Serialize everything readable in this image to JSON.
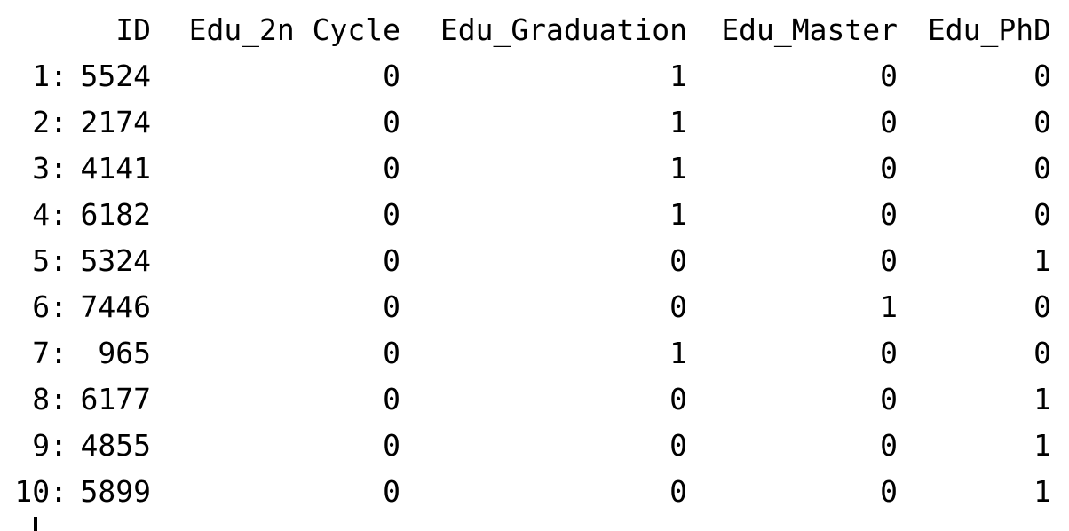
{
  "table": {
    "headers": [
      "",
      "ID",
      "Edu_2n Cycle",
      "Edu_Graduation",
      "Edu_Master",
      "Edu_PhD"
    ],
    "rows": [
      {
        "row": "1:",
        "ID": "5524",
        "Edu_2n Cycle": "0",
        "Edu_Graduation": "1",
        "Edu_Master": "0",
        "Edu_PhD": "0"
      },
      {
        "row": "2:",
        "ID": "2174",
        "Edu_2n Cycle": "0",
        "Edu_Graduation": "1",
        "Edu_Master": "0",
        "Edu_PhD": "0"
      },
      {
        "row": "3:",
        "ID": "4141",
        "Edu_2n Cycle": "0",
        "Edu_Graduation": "1",
        "Edu_Master": "0",
        "Edu_PhD": "0"
      },
      {
        "row": "4:",
        "ID": "6182",
        "Edu_2n Cycle": "0",
        "Edu_Graduation": "1",
        "Edu_Master": "0",
        "Edu_PhD": "0"
      },
      {
        "row": "5:",
        "ID": "5324",
        "Edu_2n Cycle": "0",
        "Edu_Graduation": "0",
        "Edu_Master": "0",
        "Edu_PhD": "1"
      },
      {
        "row": "6:",
        "ID": "7446",
        "Edu_2n Cycle": "0",
        "Edu_Graduation": "0",
        "Edu_Master": "1",
        "Edu_PhD": "0"
      },
      {
        "row": "7:",
        "ID": "965",
        "Edu_2n Cycle": "0",
        "Edu_Graduation": "1",
        "Edu_Master": "0",
        "Edu_PhD": "0"
      },
      {
        "row": "8:",
        "ID": "6177",
        "Edu_2n Cycle": "0",
        "Edu_Graduation": "0",
        "Edu_Master": "0",
        "Edu_PhD": "1"
      },
      {
        "row": "9:",
        "ID": "4855",
        "Edu_2n Cycle": "0",
        "Edu_Graduation": "0",
        "Edu_Master": "0",
        "Edu_PhD": "1"
      },
      {
        "row": "10:",
        "ID": "5899",
        "Edu_2n Cycle": "0",
        "Edu_Graduation": "0",
        "Edu_Master": "0",
        "Edu_PhD": "1"
      }
    ]
  }
}
